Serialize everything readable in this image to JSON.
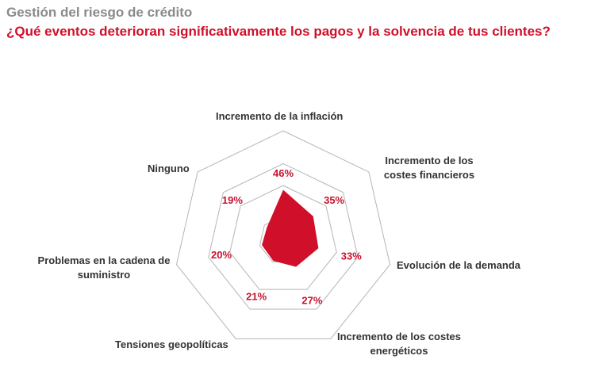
{
  "header": {
    "title": "Gestión del riesgo de crédito",
    "subtitle": "¿Qué eventos deterioran significativamente los pagos y la solvencia de tus clientes?"
  },
  "chart_data": {
    "type": "radar",
    "categories": [
      "Incremento de la inflación",
      "Incremento de los costes financieros",
      "Evolución de la demanda",
      "Incremento de los costes energéticos",
      "Tensiones geopolíticas",
      "Problemas en la cadena de suministro",
      "Ninguno"
    ],
    "values": [
      46,
      35,
      33,
      27,
      21,
      20,
      19
    ],
    "data_labels": [
      "46%",
      "35%",
      "33%",
      "27%",
      "21%",
      "20%",
      "19%"
    ],
    "unit": "%",
    "rlim": [
      0,
      100
    ],
    "grid": true,
    "colors": {
      "fill": "#d0102a",
      "grid": "#b5b5b5",
      "label": "#c8102e"
    }
  }
}
